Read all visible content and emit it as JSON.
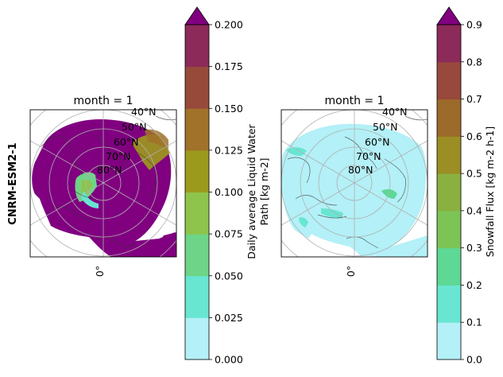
{
  "figure": {
    "row_label": "CNRM-ESM2-1"
  },
  "chart_data": [
    {
      "type": "heatmap",
      "projection": "north-polar-stereographic",
      "title": "month = 1",
      "lon_label": "0°",
      "lat_labels": [
        "40°N",
        "50°N",
        "60°N",
        "70°N",
        "80°N"
      ],
      "colorbar": {
        "label_lines": [
          "Daily average Liquid Water",
          "Path [kg m-2]"
        ],
        "ticks": [
          "0.000",
          "0.025",
          "0.050",
          "0.075",
          "0.100",
          "0.125",
          "0.150",
          "0.175",
          "0.200"
        ],
        "range": [
          0,
          0.2
        ],
        "extend": "max",
        "colors": [
          "#b3f0f7",
          "#68e6d2",
          "#6ed487",
          "#8ec44c",
          "#9c9a1c",
          "#a0722a",
          "#984a3a",
          "#8c2a5a"
        ],
        "over_color": "#800080"
      },
      "field_dominant_value": "> 0.200"
    },
    {
      "type": "heatmap",
      "projection": "north-polar-stereographic",
      "title": "month = 1",
      "lon_label": "0°",
      "lat_labels": [
        "40°N",
        "50°N",
        "60°N",
        "70°N",
        "80°N"
      ],
      "colorbar": {
        "label_lines": [
          "Snowfall Flux [kg m-2 h-1]"
        ],
        "ticks": [
          "0.0",
          "0.1",
          "0.2",
          "0.3",
          "0.4",
          "0.5",
          "0.6",
          "0.7",
          "0.8",
          "0.9"
        ],
        "range": [
          0,
          0.9
        ],
        "extend": "max",
        "colors": [
          "#b3f0f7",
          "#68e6d2",
          "#5dd895",
          "#7cc455",
          "#8ab040",
          "#9a8e24",
          "#9c6a2a",
          "#98483c",
          "#8c2a5a"
        ],
        "over_color": "#800080"
      },
      "field_dominant_value": "0.0 - 0.1"
    }
  ]
}
